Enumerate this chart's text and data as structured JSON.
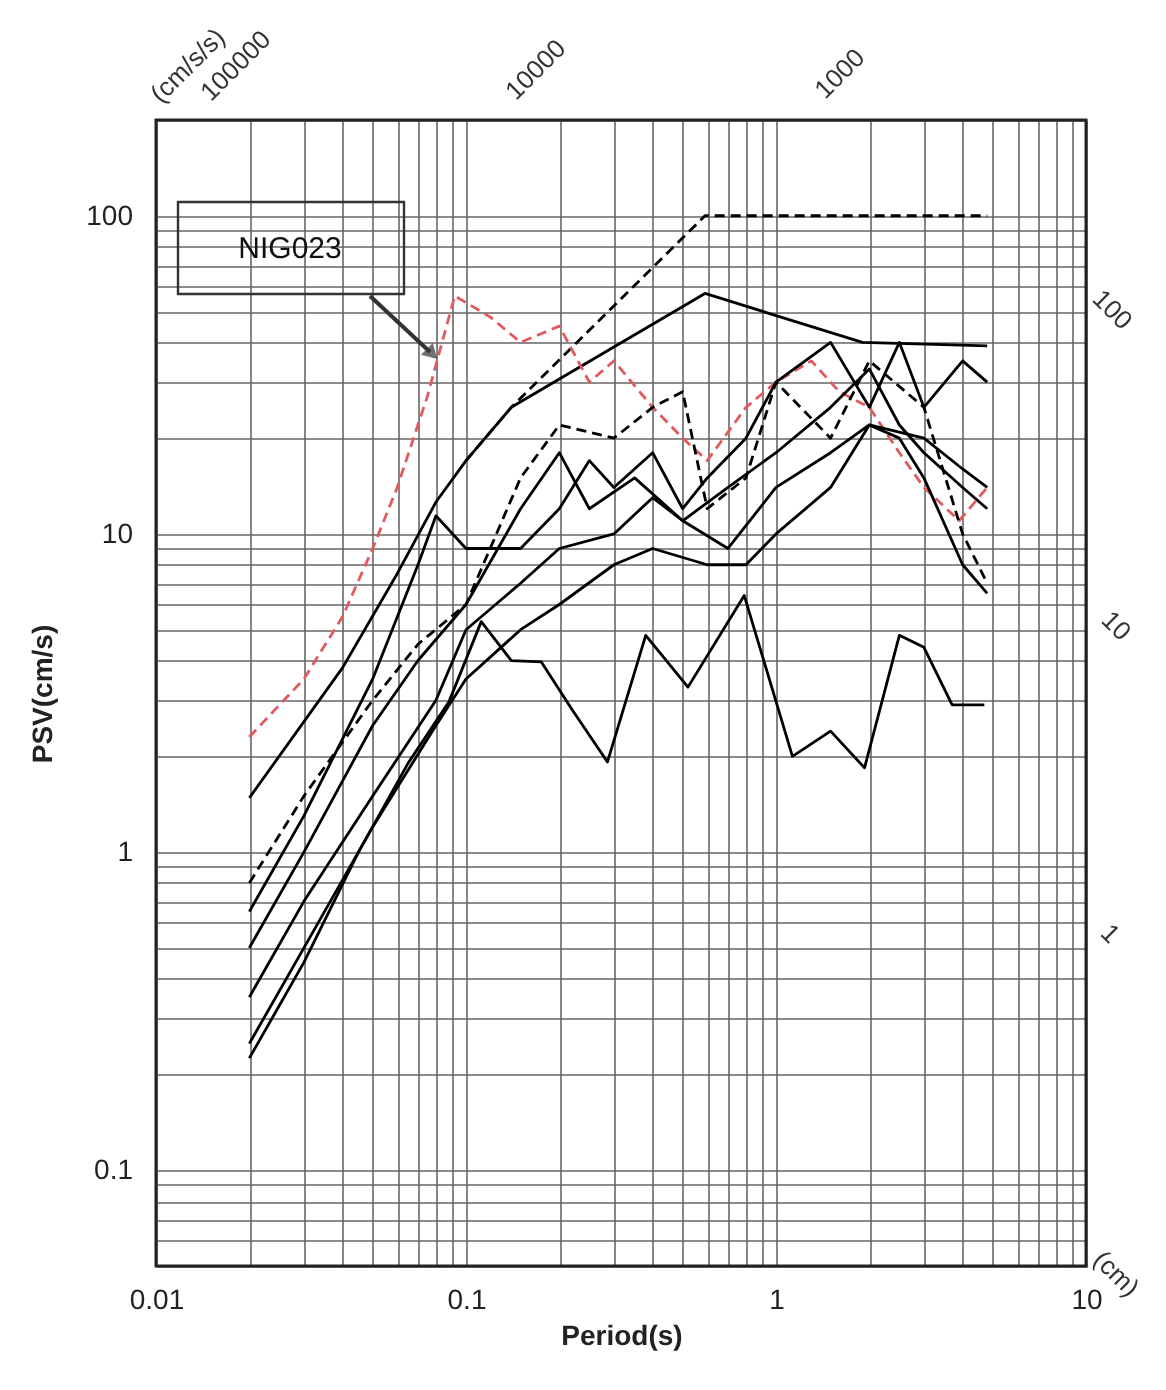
{
  "chart_data": {
    "type": "line",
    "xlabel": "Period(s)",
    "ylabel": "PSV(cm/s)",
    "log": "xy",
    "grid": true,
    "legend": false,
    "xlim": [
      0.01,
      10
    ],
    "ylim": [
      0.05,
      200
    ],
    "xticks": [
      0.01,
      {
        "value": 0.02,
        "label": null
      },
      {
        "value": 0.03,
        "label": null
      },
      {
        "value": 0.04,
        "label": null
      },
      {
        "value": 0.05,
        "label": null
      },
      {
        "value": 0.06,
        "label": null
      },
      {
        "value": 0.07,
        "label": null
      },
      {
        "value": 0.08,
        "label": null
      },
      {
        "value": 0.09,
        "label": null
      },
      0.1,
      {
        "value": 0.2,
        "label": null
      },
      {
        "value": 0.3,
        "label": null
      },
      {
        "value": 0.4,
        "label": null
      },
      {
        "value": 0.5,
        "label": null
      },
      {
        "value": 0.6,
        "label": null
      },
      {
        "value": 0.7,
        "label": null
      },
      {
        "value": 0.8,
        "label": null
      },
      {
        "value": 0.9,
        "label": null
      },
      1,
      {
        "value": 2,
        "label": null
      },
      {
        "value": 3,
        "label": null
      },
      {
        "value": 4,
        "label": null
      },
      {
        "value": 5,
        "label": null
      },
      {
        "value": 6,
        "label": null
      },
      {
        "value": 7,
        "label": null
      },
      {
        "value": 8,
        "label": null
      },
      {
        "value": 9,
        "label": null
      },
      10
    ],
    "yticks": [
      {
        "value": 0.05,
        "label": null
      },
      {
        "value": 0.06,
        "label": null
      },
      {
        "value": 0.07,
        "label": null
      },
      {
        "value": 0.08,
        "label": null
      },
      {
        "value": 0.09,
        "label": null
      },
      0.1,
      {
        "value": 0.2,
        "label": null
      },
      {
        "value": 0.3,
        "label": null
      },
      {
        "value": 0.4,
        "label": null
      },
      {
        "value": 0.5,
        "label": null
      },
      {
        "value": 0.6,
        "label": null
      },
      {
        "value": 0.7,
        "label": null
      },
      {
        "value": 0.8,
        "label": null
      },
      {
        "value": 0.9,
        "label": null
      },
      1,
      {
        "value": 2,
        "label": null
      },
      {
        "value": 3,
        "label": null
      },
      {
        "value": 4,
        "label": null
      },
      {
        "value": 5,
        "label": null
      },
      {
        "value": 6,
        "label": null
      },
      {
        "value": 7,
        "label": null
      },
      {
        "value": 8,
        "label": null
      },
      {
        "value": 9,
        "label": null
      },
      10,
      {
        "value": 20,
        "label": null
      },
      {
        "value": 30,
        "label": null
      },
      {
        "value": 40,
        "label": null
      },
      {
        "value": 50,
        "label": null
      },
      {
        "value": 60,
        "label": null
      },
      {
        "value": 70,
        "label": null
      },
      {
        "value": 80,
        "label": null
      },
      {
        "value": 90,
        "label": null
      },
      100,
      {
        "value": 200,
        "label": null
      }
    ],
    "series": [
      {
        "color": "#000000",
        "line_style": "solid",
        "x": [
          0.02,
          0.04,
          0.06,
          0.08,
          0.1,
          0.14,
          0.59,
          1.9,
          4.8
        ],
        "values": [
          1.48,
          3.8,
          7.5,
          12.6,
          17,
          25,
          57,
          40,
          39
        ]
      },
      {
        "color": "#000000",
        "line_style": "dashed",
        "x": [
          0.1,
          0.14,
          0.59,
          4.8
        ],
        "values": [
          17,
          25,
          100,
          100
        ]
      },
      {
        "color": "#e05a5e",
        "line_style": "dashed",
        "x": [
          0.02,
          0.03,
          0.04,
          0.05,
          0.06,
          0.075,
          0.092,
          0.12,
          0.15,
          0.2,
          0.25,
          0.3,
          0.4,
          0.5,
          0.6,
          0.8,
          1.0,
          1.3,
          1.6,
          2.0,
          2.5,
          3.0,
          3.9,
          4.8
        ],
        "values": [
          2.3,
          3.5,
          5.5,
          9,
          14,
          27,
          56,
          48,
          40,
          45,
          30,
          35,
          25,
          20,
          17,
          25,
          30,
          35,
          28,
          25,
          18,
          14,
          11,
          14
        ]
      },
      {
        "color": "#000000",
        "line_style": "solid",
        "x": [
          0.02,
          0.03,
          0.05,
          0.07,
          0.08,
          0.1,
          0.15,
          0.2,
          0.25,
          0.3,
          0.4,
          0.5,
          0.6,
          0.8,
          1.0,
          1.5,
          2.0,
          2.5,
          3.0,
          4.0,
          4.8
        ],
        "values": [
          0.65,
          1.3,
          3.5,
          8,
          11.4,
          9,
          9,
          12,
          17,
          14,
          18,
          12,
          15,
          20,
          30,
          40,
          25,
          40,
          25,
          35,
          30
        ]
      },
      {
        "color": "#000000",
        "line_style": "dashed",
        "x": [
          0.02,
          0.03,
          0.05,
          0.07,
          0.1,
          0.15,
          0.2,
          0.3,
          0.4,
          0.5,
          0.6,
          0.8,
          1.0,
          1.5,
          2.0,
          3.0,
          4.0,
          4.8
        ],
        "values": [
          0.8,
          1.5,
          3,
          4.5,
          6,
          15,
          22,
          20,
          25,
          28,
          12,
          15,
          30,
          20,
          35,
          25,
          10,
          7
        ]
      },
      {
        "color": "#000000",
        "line_style": "solid",
        "x": [
          0.02,
          0.03,
          0.05,
          0.07,
          0.1,
          0.15,
          0.2,
          0.25,
          0.35,
          0.5,
          0.7,
          1.0,
          1.5,
          2.0,
          2.5,
          3.0,
          4.0,
          4.8
        ],
        "values": [
          0.5,
          1,
          2.5,
          4,
          6,
          12,
          18,
          12,
          15,
          11,
          14,
          18,
          25,
          33,
          22,
          18,
          14,
          12
        ]
      },
      {
        "color": "#000000",
        "line_style": "solid",
        "x": [
          0.02,
          0.03,
          0.05,
          0.08,
          0.1,
          0.15,
          0.2,
          0.3,
          0.4,
          0.5,
          0.7,
          1.0,
          1.5,
          2.0,
          2.5,
          3.0,
          4.0,
          4.8
        ],
        "values": [
          0.35,
          0.7,
          1.5,
          3,
          5,
          7,
          9,
          10,
          13,
          11,
          9,
          14,
          18,
          22,
          20,
          15,
          8,
          6.5
        ]
      },
      {
        "color": "#000000",
        "line_style": "solid",
        "x": [
          0.02,
          0.03,
          0.05,
          0.08,
          0.1,
          0.15,
          0.2,
          0.3,
          0.4,
          0.6,
          0.8,
          1.0,
          1.5,
          2.0,
          3.0,
          4.0,
          4.8
        ],
        "values": [
          0.25,
          0.5,
          1.2,
          2.5,
          3.5,
          5,
          6,
          8,
          9,
          8,
          8,
          10,
          14,
          22,
          20,
          16,
          14
        ]
      },
      {
        "color": "#000000",
        "line_style": "solid",
        "x": [
          0.02,
          0.03,
          0.045,
          0.065,
          0.088,
          0.112,
          0.14,
          0.175,
          0.22,
          0.286,
          0.38,
          0.52,
          0.79,
          1.13,
          1.5,
          1.93,
          2.5,
          3.0,
          3.7,
          4.7
        ],
        "values": [
          0.225,
          0.45,
          1.0,
          1.9,
          2.96,
          5.3,
          4.0,
          3.96,
          2.8,
          1.92,
          4.8,
          3.3,
          6.4,
          2.0,
          2.4,
          1.84,
          4.8,
          4.4,
          2.9,
          2.9
        ]
      }
    ],
    "annotations": [
      "NIG023",
      "(cm/s/s)",
      "100000",
      "10000",
      "1000",
      "100",
      "10",
      "1",
      "(cm)"
    ]
  }
}
